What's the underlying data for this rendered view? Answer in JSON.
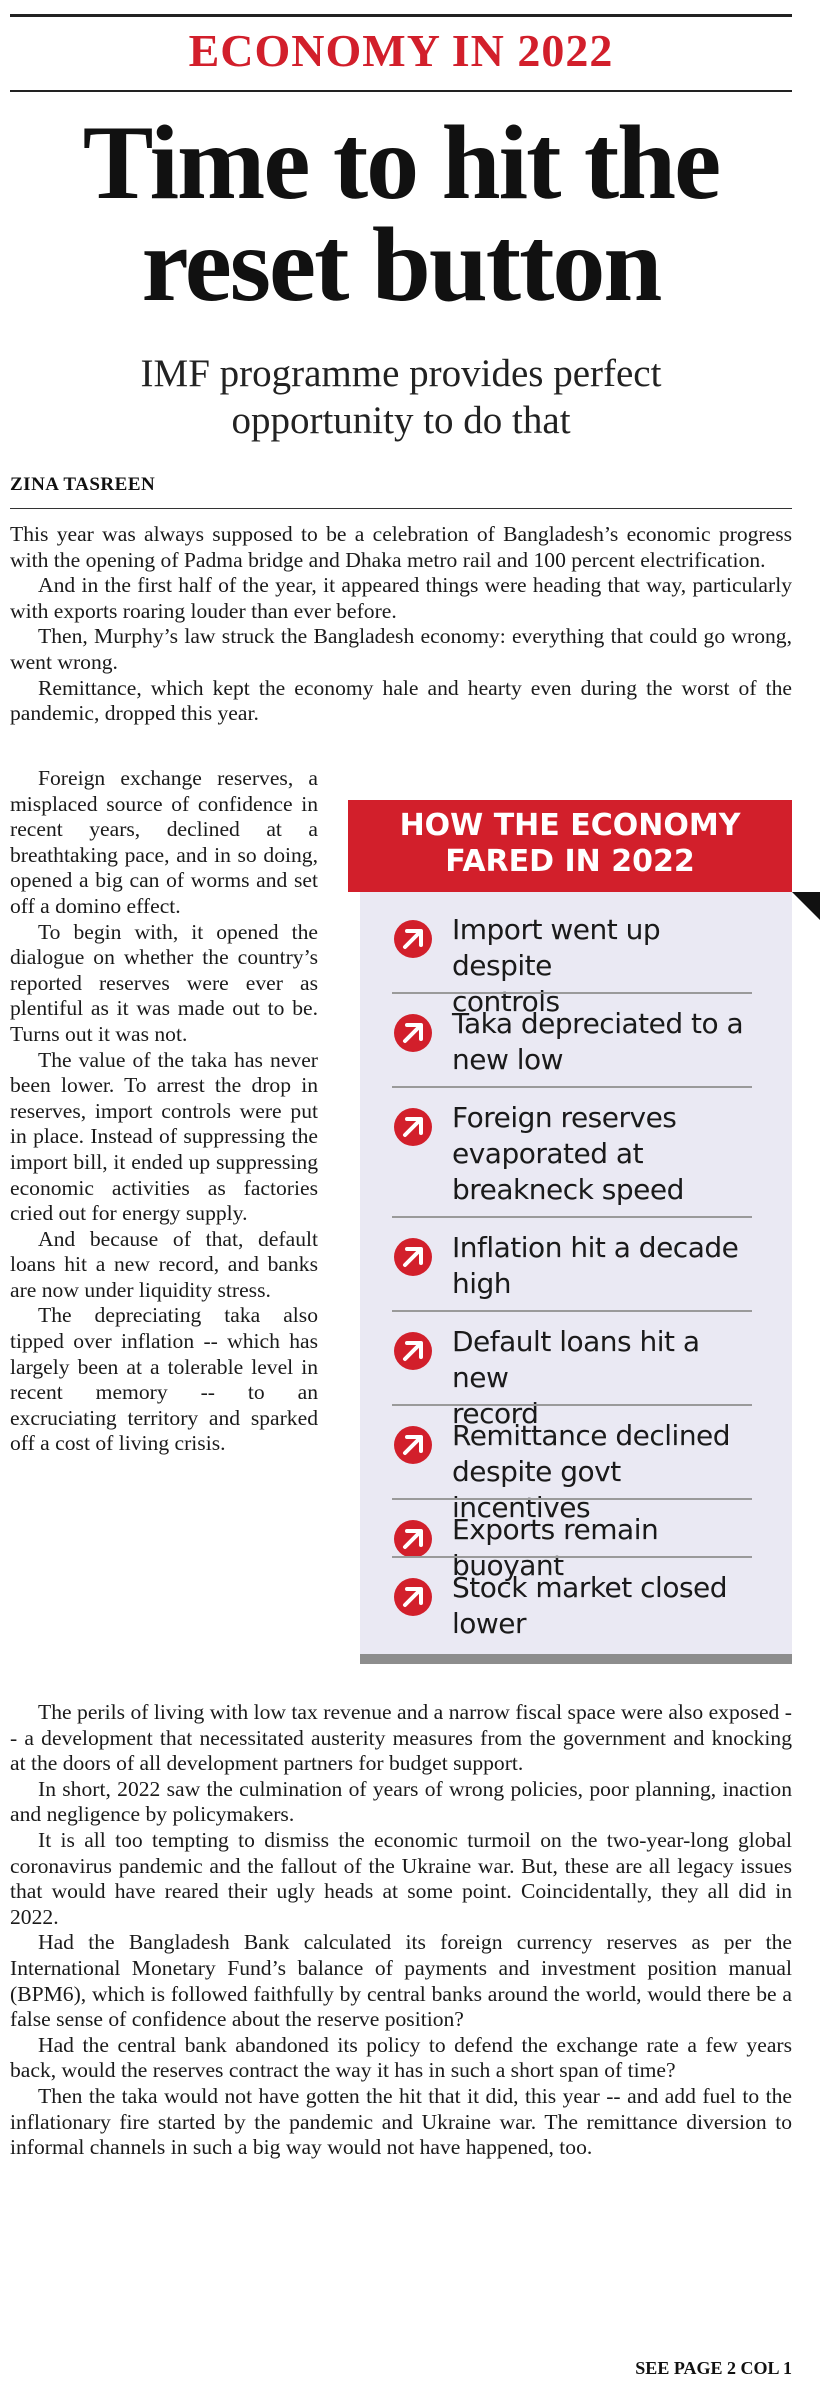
{
  "section_label": "ECONOMY IN 2022",
  "headline": {
    "line1": "Time to hit the",
    "line2": "reset button"
  },
  "subhead": {
    "line1": "IMF programme provides perfect",
    "line2": "opportunity to do that"
  },
  "byline": "ZINA TASREEN",
  "paragraphs_top": [
    "This year was always supposed to be a celebration of Bangladesh’s economic progress with the opening of Padma bridge and Dhaka metro rail and 100 percent electrification.",
    "And in the first half of the year, it appeared things were heading that way, particularly with exports roaring louder than ever before.",
    "Then, Murphy’s law struck the Bangladesh economy: everything that could go wrong, went wrong.",
    "Remittance, which kept the economy hale and hearty even during the worst of the pandemic, dropped this year."
  ],
  "paragraphs_column": [
    "Foreign exchange reserves, a misplaced source of confidence in recent years, declined at a breathtaking pace, and in so doing, opened a big can of worms and set off a domino effect.",
    "To begin with, it opened the dialogue on whether the country’s reported reserves were ever as plentiful as it was made out to be. Turns out it was not.",
    "The value of the taka has never been lower. To arrest the drop in reserves, import controls were put in place. Instead of suppressing the import bill, it ended up suppressing economic activities as factories cried out for energy supply.",
    "And because of that, default loans hit a new record, and banks are now under liquidity stress.",
    "The depreciating taka also tipped over inflation -- which has largely been at a tolerable level in recent memory -- to an excruciating territory and sparked off a cost of living crisis."
  ],
  "paragraphs_bottom": [
    "The perils of living with low tax revenue and a narrow fiscal space were also exposed -- a development that necessitated austerity measures from the government and knocking at the doors of all development partners for budget support.",
    "In short, 2022 saw the culmination of years of wrong policies, poor planning, inaction and negligence by policymakers.",
    "It is all too tempting to dismiss the economic turmoil on the two-year-long global coronavirus pandemic and the fallout of the Ukraine war. But, these are all legacy issues that would have reared their ugly heads at some point. Coincidentally, they all did in 2022.",
    "Had the Bangladesh Bank calculated its foreign currency reserves as per the International Monetary Fund’s balance of payments and investment position manual (BPM6), which is followed faithfully by central banks around the world, would there be a false sense of confidence about the reserve position?",
    "Had the central bank abandoned its policy to defend the exchange rate a few years back, would the reserves contract the way it has in such a short span of time?",
    "Then the taka would not have gotten the hit that it did, this year -- and add fuel to the inflationary fire started by the pandemic and Ukraine war. The remittance diversion to informal channels in such a big way would not have happened, too."
  ],
  "sidebar": {
    "title_line1": "HOW THE ECONOMY",
    "title_line2": "FARED IN 2022",
    "icon": "circle-arrow-icon",
    "accent_color": "#d21f2b",
    "items": [
      {
        "line1": "Import went up despite",
        "line2": "controls",
        "line3": ""
      },
      {
        "line1": "Taka depreciated to a",
        "line2": "new low",
        "line3": ""
      },
      {
        "line1": "Foreign reserves",
        "line2": "evaporated at",
        "line3": "breakneck speed"
      },
      {
        "line1": "Inflation hit a decade",
        "line2": "high",
        "line3": ""
      },
      {
        "line1": "Default loans hit a new",
        "line2": "record",
        "line3": ""
      },
      {
        "line1": "Remittance declined",
        "line2": "despite govt incentives",
        "line3": ""
      },
      {
        "line1": "Exports remain buoyant",
        "line2": "",
        "line3": ""
      },
      {
        "line1": "Stock market closed",
        "line2": "lower",
        "line3": ""
      }
    ]
  },
  "jump_line": "SEE PAGE 2 COL 1"
}
